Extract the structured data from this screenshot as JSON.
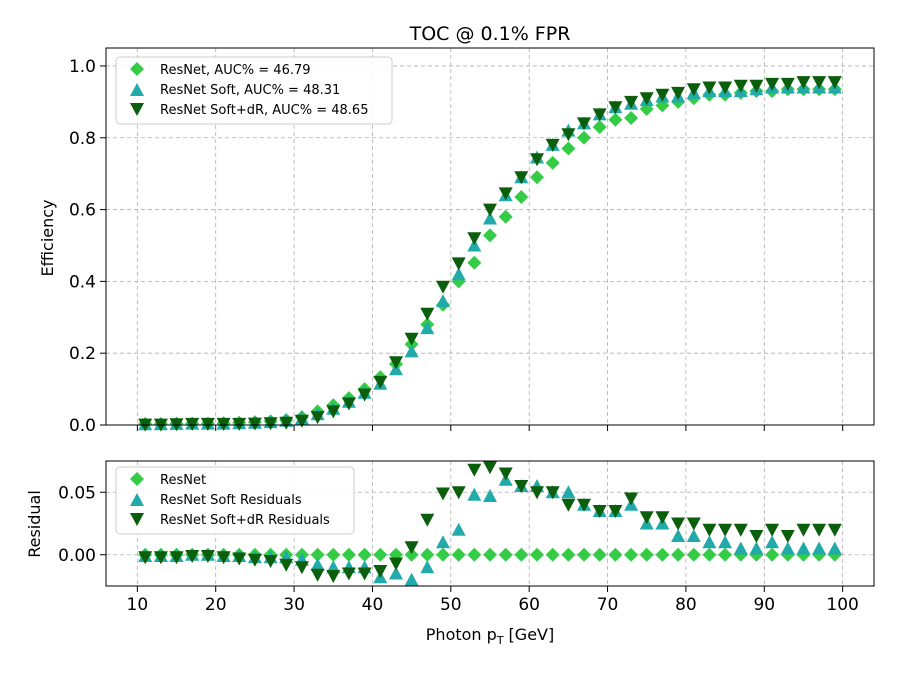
{
  "chart_data": {
    "type": "scatter",
    "title": "TOC @ 0.1% FPR",
    "xlabel_text": "Photon p",
    "xlabel_sub": "T",
    "xlabel_unit": "[GeV]",
    "x": [
      11,
      13,
      15,
      17,
      19,
      21,
      23,
      25,
      27,
      29,
      31,
      33,
      35,
      37,
      39,
      41,
      43,
      45,
      47,
      49,
      51,
      53,
      55,
      57,
      59,
      61,
      63,
      65,
      67,
      69,
      71,
      73,
      75,
      77,
      79,
      81,
      83,
      85,
      87,
      89,
      91,
      93,
      95,
      97,
      99
    ],
    "xticks": [
      "10",
      "20",
      "30",
      "40",
      "50",
      "60",
      "70",
      "80",
      "90",
      "100"
    ],
    "colors": {
      "resnet": "#33cc44",
      "soft": "#22aaaa",
      "softdr": "#0b5e0b"
    },
    "top": {
      "ylabel": "Efficiency",
      "ylim": [
        0,
        1.05
      ],
      "yticks": [
        "0.0",
        "0.2",
        "0.4",
        "0.6",
        "0.8",
        "1.0"
      ],
      "legend": [
        "ResNet, AUC% = 46.79",
        "ResNet Soft, AUC% = 48.31",
        "ResNet Soft+dR, AUC% = 48.65"
      ],
      "series": [
        {
          "name": "ResNet",
          "marker": "diamond",
          "color": "#33cc44",
          "values": [
            0.003,
            0.003,
            0.004,
            0.004,
            0.004,
            0.005,
            0.006,
            0.008,
            0.01,
            0.014,
            0.022,
            0.038,
            0.055,
            0.075,
            0.1,
            0.133,
            0.17,
            0.225,
            0.28,
            0.335,
            0.4,
            0.452,
            0.528,
            0.58,
            0.635,
            0.69,
            0.73,
            0.77,
            0.8,
            0.83,
            0.85,
            0.855,
            0.88,
            0.89,
            0.9,
            0.91,
            0.92,
            0.92,
            0.925,
            0.93,
            0.93,
            0.935,
            0.935,
            0.935,
            0.935
          ]
        },
        {
          "name": "ResNet Soft",
          "marker": "triangle-up",
          "color": "#22aaaa",
          "values": [
            0.002,
            0.002,
            0.003,
            0.004,
            0.004,
            0.004,
            0.005,
            0.006,
            0.008,
            0.012,
            0.018,
            0.03,
            0.045,
            0.065,
            0.09,
            0.115,
            0.155,
            0.205,
            0.27,
            0.345,
            0.42,
            0.5,
            0.575,
            0.64,
            0.69,
            0.745,
            0.78,
            0.82,
            0.84,
            0.865,
            0.885,
            0.895,
            0.905,
            0.915,
            0.915,
            0.925,
            0.93,
            0.93,
            0.93,
            0.935,
            0.94,
            0.94,
            0.94,
            0.94,
            0.94
          ]
        },
        {
          "name": "ResNet Soft+dR",
          "marker": "triangle-down",
          "color": "#0b5e0b",
          "values": [
            0.001,
            0.001,
            0.002,
            0.003,
            0.003,
            0.003,
            0.003,
            0.004,
            0.005,
            0.006,
            0.012,
            0.022,
            0.038,
            0.06,
            0.085,
            0.12,
            0.175,
            0.24,
            0.31,
            0.385,
            0.45,
            0.52,
            0.6,
            0.645,
            0.69,
            0.74,
            0.78,
            0.81,
            0.84,
            0.865,
            0.885,
            0.9,
            0.91,
            0.92,
            0.925,
            0.935,
            0.94,
            0.94,
            0.945,
            0.945,
            0.95,
            0.95,
            0.955,
            0.955,
            0.955
          ]
        }
      ]
    },
    "bottom": {
      "ylabel": "Residual",
      "ylim": [
        -0.025,
        0.075
      ],
      "yticks": [
        "0.00",
        "0.05"
      ],
      "legend": [
        "ResNet",
        "ResNet Soft Residuals",
        "ResNet Soft+dR Residuals"
      ],
      "series": [
        {
          "name": "ResNet",
          "marker": "diamond",
          "color": "#33cc44",
          "values": [
            0,
            0,
            0,
            0,
            0,
            0,
            0,
            0,
            0,
            0,
            0,
            0,
            0,
            0,
            0,
            0,
            0,
            0,
            0,
            0,
            0,
            0,
            0,
            0,
            0,
            0,
            0,
            0,
            0,
            0,
            0,
            0,
            0,
            0,
            0,
            0,
            0,
            0,
            0,
            0,
            0,
            0,
            0,
            0,
            0
          ]
        },
        {
          "name": "ResNet Soft Residuals",
          "marker": "triangle-up",
          "color": "#22aaaa",
          "values": [
            -0.001,
            -0.001,
            -0.001,
            0,
            0,
            -0.001,
            -0.001,
            -0.002,
            -0.002,
            -0.002,
            -0.004,
            -0.008,
            -0.01,
            -0.01,
            -0.01,
            -0.018,
            -0.015,
            -0.02,
            -0.01,
            0.01,
            0.02,
            0.048,
            0.047,
            0.06,
            0.055,
            0.055,
            0.05,
            0.05,
            0.04,
            0.035,
            0.035,
            0.04,
            0.025,
            0.025,
            0.015,
            0.015,
            0.01,
            0.01,
            0.005,
            0.005,
            0.01,
            0.005,
            0.005,
            0.005,
            0.005
          ]
        },
        {
          "name": "ResNet Soft+dR Residuals",
          "marker": "triangle-down",
          "color": "#0b5e0b",
          "values": [
            -0.002,
            -0.002,
            -0.002,
            -0.001,
            -0.001,
            -0.002,
            -0.003,
            -0.004,
            -0.005,
            -0.008,
            -0.01,
            -0.016,
            -0.017,
            -0.015,
            -0.015,
            -0.013,
            -0.007,
            0.006,
            0.028,
            0.049,
            0.05,
            0.068,
            0.07,
            0.065,
            0.055,
            0.05,
            0.05,
            0.04,
            0.04,
            0.035,
            0.035,
            0.045,
            0.03,
            0.03,
            0.025,
            0.025,
            0.02,
            0.02,
            0.02,
            0.015,
            0.02,
            0.015,
            0.02,
            0.02,
            0.02
          ]
        }
      ]
    }
  }
}
